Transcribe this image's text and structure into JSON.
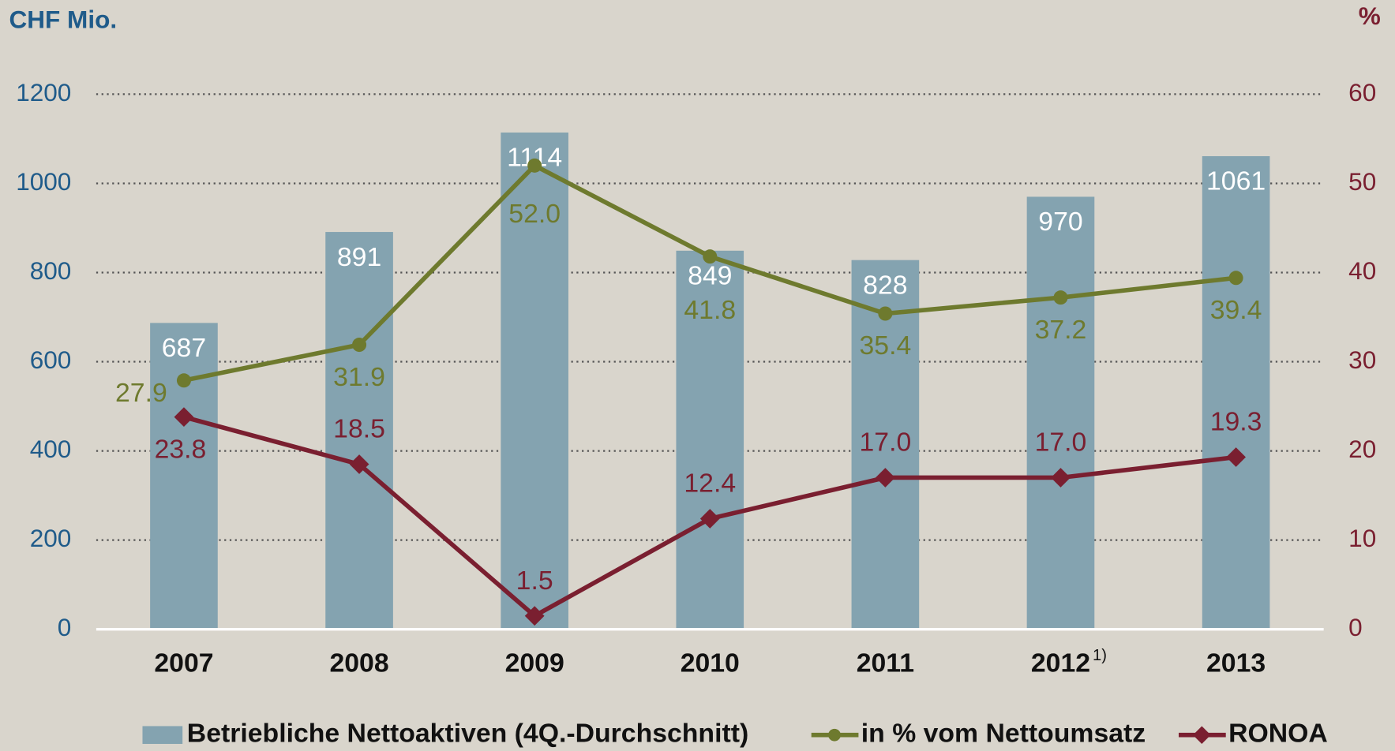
{
  "chart_data": {
    "type": "bar_line",
    "y_label": "CHF Mio.",
    "y2_label": "%",
    "categories": [
      "2007",
      "2008",
      "2009",
      "2010",
      "2011",
      "2012",
      "2013"
    ],
    "footnote_marks": {
      "2012": "1)"
    },
    "series": [
      {
        "name": "Betriebliche Nettoaktiven (4Q.-Durchschnitt)",
        "type": "bar",
        "color": "#84a3b0",
        "axis": "y",
        "values": [
          687,
          891,
          1114,
          849,
          828,
          970,
          1061
        ]
      },
      {
        "name": "in % vom Nettoumsatz",
        "type": "line",
        "marker": "circle",
        "color": "#6e7a2e",
        "axis": "y2",
        "values": [
          27.9,
          31.9,
          52.0,
          41.8,
          35.4,
          37.2,
          39.4
        ],
        "value_labels": [
          "27.9",
          "31.9",
          "52.0",
          "41.8",
          "35.4",
          "37.2",
          "39.4"
        ]
      },
      {
        "name": "RONOA",
        "type": "line",
        "marker": "diamond",
        "color": "#7a1f30",
        "axis": "y2",
        "values": [
          23.8,
          18.5,
          1.5,
          12.4,
          17.0,
          17.0,
          19.3
        ],
        "value_labels": [
          "23.8",
          "18.5",
          "1.5",
          "12.4",
          "17.0",
          "17.0",
          "19.3"
        ]
      }
    ],
    "ylim": [
      0,
      1200
    ],
    "yticks": [
      0,
      200,
      400,
      600,
      800,
      1000,
      1200
    ],
    "y2lim": [
      0,
      60
    ],
    "y2ticks": [
      0,
      10,
      20,
      30,
      40,
      50,
      60
    ],
    "grid": true,
    "legend": "bottom"
  }
}
